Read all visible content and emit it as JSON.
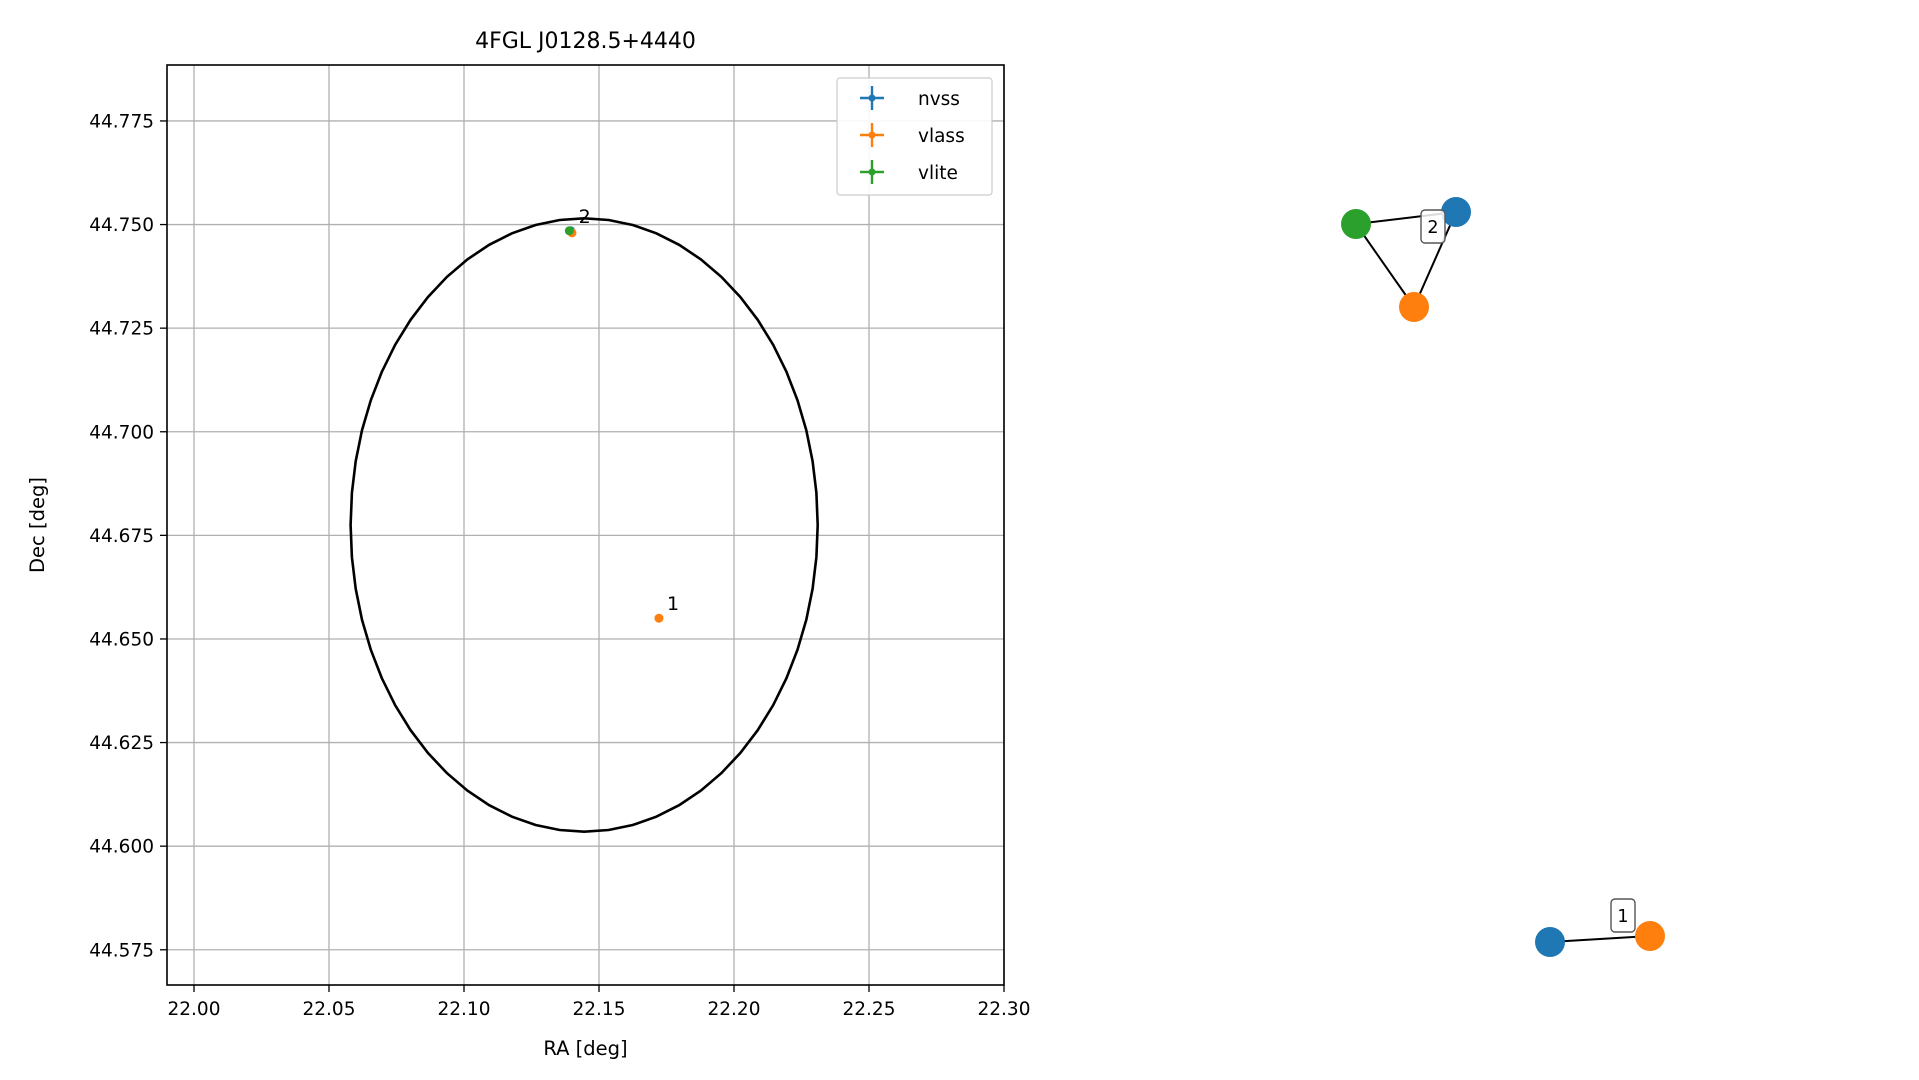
{
  "colors": {
    "nvss": "#1f77b4",
    "vlass": "#ff7f0e",
    "vlite": "#2ca02c",
    "grid": "#b0b0b0",
    "ellipse": "#000000"
  },
  "chart_data": [
    {
      "type": "scatter",
      "title": "4FGL J0128.5+4440",
      "xlabel": "RA [deg]",
      "ylabel": "Dec [deg]",
      "xlim": [
        21.99,
        22.3
      ],
      "ylim": [
        44.5665,
        44.7885
      ],
      "xticks": [
        22.0,
        22.05,
        22.1,
        22.15,
        22.2,
        22.25,
        22.3
      ],
      "xtick_labels": [
        "22.00",
        "22.05",
        "22.10",
        "22.15",
        "22.20",
        "22.25",
        "22.30"
      ],
      "yticks": [
        44.575,
        44.6,
        44.625,
        44.65,
        44.675,
        44.7,
        44.725,
        44.75,
        44.775
      ],
      "ytick_labels": [
        "44.575",
        "44.600",
        "44.625",
        "44.650",
        "44.675",
        "44.700",
        "44.725",
        "44.750",
        "44.775"
      ],
      "grid": true,
      "legend": {
        "position": "top-right",
        "entries": [
          "nvss",
          "vlass",
          "vlite"
        ]
      },
      "ellipse": {
        "center": [
          22.1445,
          44.6775
        ],
        "half_width_ra": 0.0865,
        "half_height_dec": 0.074
      },
      "series": [
        {
          "name": "nvss",
          "points": [
            {
              "x": 22.1395,
              "y": 44.7485
            }
          ]
        },
        {
          "name": "vlass",
          "points": [
            {
              "x": 22.14,
              "y": 44.748
            },
            {
              "x": 22.1722,
              "y": 44.655
            }
          ]
        },
        {
          "name": "vlite",
          "points": [
            {
              "x": 22.139,
              "y": 44.7485
            }
          ]
        }
      ],
      "annotations": [
        {
          "text": "2",
          "x": 22.1395,
          "y": 44.7485
        },
        {
          "text": "1",
          "x": 22.1722,
          "y": 44.655
        }
      ]
    },
    {
      "type": "network",
      "groups": [
        {
          "label": "2",
          "nodes": [
            "nvss",
            "vlass",
            "vlite"
          ],
          "edges": [
            [
              "vlite",
              "nvss"
            ],
            [
              "vlite",
              "vlass"
            ],
            [
              "nvss",
              "vlass"
            ]
          ]
        },
        {
          "label": "1",
          "nodes": [
            "nvss",
            "vlass"
          ],
          "edges": [
            [
              "nvss",
              "vlass"
            ]
          ]
        }
      ]
    }
  ]
}
